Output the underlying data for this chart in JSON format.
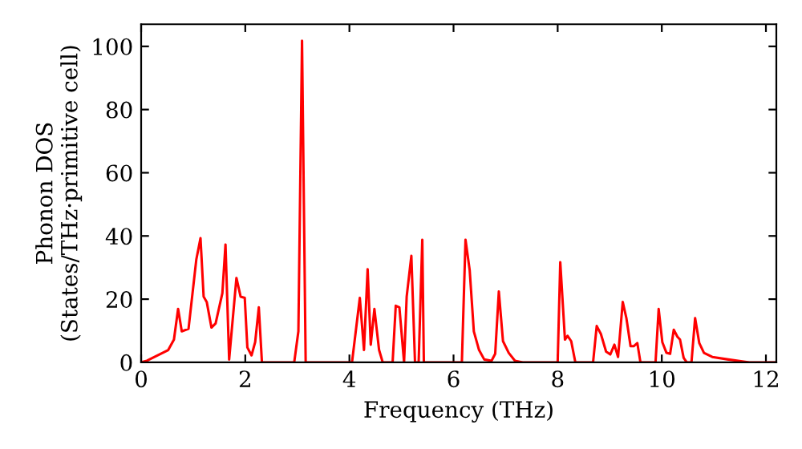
{
  "chart_data": {
    "type": "line",
    "xlabel": "Frequency (THz)",
    "ylabel": "Phonon DOS\n(States/THz·primitive cell)",
    "xlim": [
      0,
      12.2
    ],
    "ylim": [
      0,
      107
    ],
    "xticks": [
      0,
      2,
      4,
      6,
      8,
      10,
      12
    ],
    "yticks": [
      0,
      20,
      40,
      60,
      80,
      100
    ],
    "grid": false,
    "legend": false,
    "marker": "none",
    "line_style": "solid",
    "series": [
      {
        "color": "#ff0000",
        "x": [
          0,
          0.11,
          0.52,
          0.63,
          0.71,
          0.78,
          0.91,
          1.06,
          1.14,
          1.2,
          1.26,
          1.35,
          1.43,
          1.56,
          1.62,
          1.69,
          1.83,
          1.91,
          1.99,
          2.04,
          2.12,
          2.19,
          2.26,
          2.32,
          2.94,
          3.02,
          3.09,
          3.16,
          4.05,
          4.2,
          4.28,
          4.35,
          4.41,
          4.48,
          4.57,
          4.64,
          4.83,
          4.89,
          4.96,
          5.05,
          5.1,
          5.19,
          5.26,
          5.33,
          5.4,
          5.43,
          6.16,
          6.23,
          6.31,
          6.39,
          6.49,
          6.59,
          6.73,
          6.8,
          6.87,
          6.95,
          7.06,
          7.18,
          7.33,
          8.0,
          8.05,
          8.14,
          8.19,
          8.26,
          8.34,
          8.68,
          8.75,
          8.83,
          8.93,
          9.01,
          9.09,
          9.16,
          9.25,
          9.32,
          9.4,
          9.46,
          9.53,
          9.59,
          9.88,
          9.94,
          10.01,
          10.09,
          10.16,
          10.23,
          10.3,
          10.35,
          10.42,
          10.48,
          10.57,
          10.64,
          10.72,
          10.81,
          10.97,
          11.28,
          11.68,
          12.19
        ],
        "values": [
          0,
          0.5,
          3.9,
          7.2,
          16.9,
          9.8,
          10.6,
          32.6,
          39.3,
          20.8,
          19.1,
          11.0,
          12.3,
          21.9,
          37.3,
          0.9,
          26.7,
          20.8,
          20.4,
          4.7,
          2.2,
          6.4,
          17.4,
          0,
          0,
          9.8,
          101.8,
          0,
          0,
          20.4,
          3.9,
          29.5,
          5.6,
          16.9,
          3.9,
          0,
          0,
          17.9,
          17.4,
          0,
          20.8,
          33.7,
          0,
          0,
          38.8,
          0,
          0,
          38.8,
          29.2,
          9.8,
          3.9,
          0.9,
          0.5,
          2.7,
          22.4,
          6.7,
          3.0,
          0.5,
          0,
          0,
          31.7,
          7.2,
          8.4,
          6.7,
          0,
          0,
          11.5,
          9.0,
          3.4,
          2.5,
          5.6,
          1.7,
          19.1,
          14.0,
          5.1,
          5.1,
          6.1,
          0,
          0,
          16.9,
          6.4,
          3.0,
          2.7,
          10.3,
          8.1,
          7.2,
          1.4,
          0,
          0,
          14.0,
          6.1,
          3.0,
          1.7,
          0.9,
          0,
          0
        ]
      }
    ]
  }
}
